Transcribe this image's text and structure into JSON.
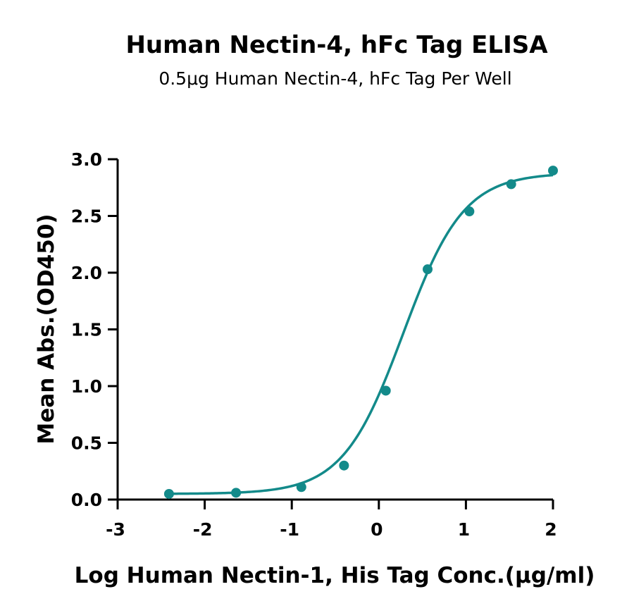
{
  "colors": {
    "series": "#138A8A",
    "axis": "#000000"
  },
  "chart_data": {
    "type": "scatter",
    "title": "Human Nectin-4, hFc Tag ELISA",
    "subtitle": "0.5μg Human Nectin-4, hFc Tag Per Well",
    "xlabel": "Log Human Nectin-1, His Tag Conc.(μg/ml)",
    "ylabel": "Mean Abs.(OD450)",
    "xlim": [
      -3,
      2
    ],
    "ylim": [
      0,
      3
    ],
    "x_ticks": [
      -3,
      -2,
      -1,
      0,
      1,
      2
    ],
    "y_ticks": [
      0.0,
      0.5,
      1.0,
      1.5,
      2.0,
      2.5,
      3.0
    ],
    "x_tick_labels": [
      "-3",
      "-2",
      "-1",
      "0",
      "1",
      "2"
    ],
    "y_tick_labels": [
      "0.0",
      "0.5",
      "1.0",
      "1.5",
      "2.0",
      "2.5",
      "3.0"
    ],
    "grid": false,
    "series": [
      {
        "x": [
          -2.41,
          -1.64,
          -0.89,
          -0.4,
          0.08,
          0.56,
          1.04,
          1.52,
          2.0
        ],
        "y": [
          0.05,
          0.06,
          0.11,
          0.3,
          0.96,
          2.03,
          2.54,
          2.78,
          2.9
        ],
        "fit": {
          "model": "4PL",
          "bottom": 0.05,
          "top": 2.88,
          "logEC50": 0.28,
          "hill": 1.25
        }
      }
    ]
  }
}
